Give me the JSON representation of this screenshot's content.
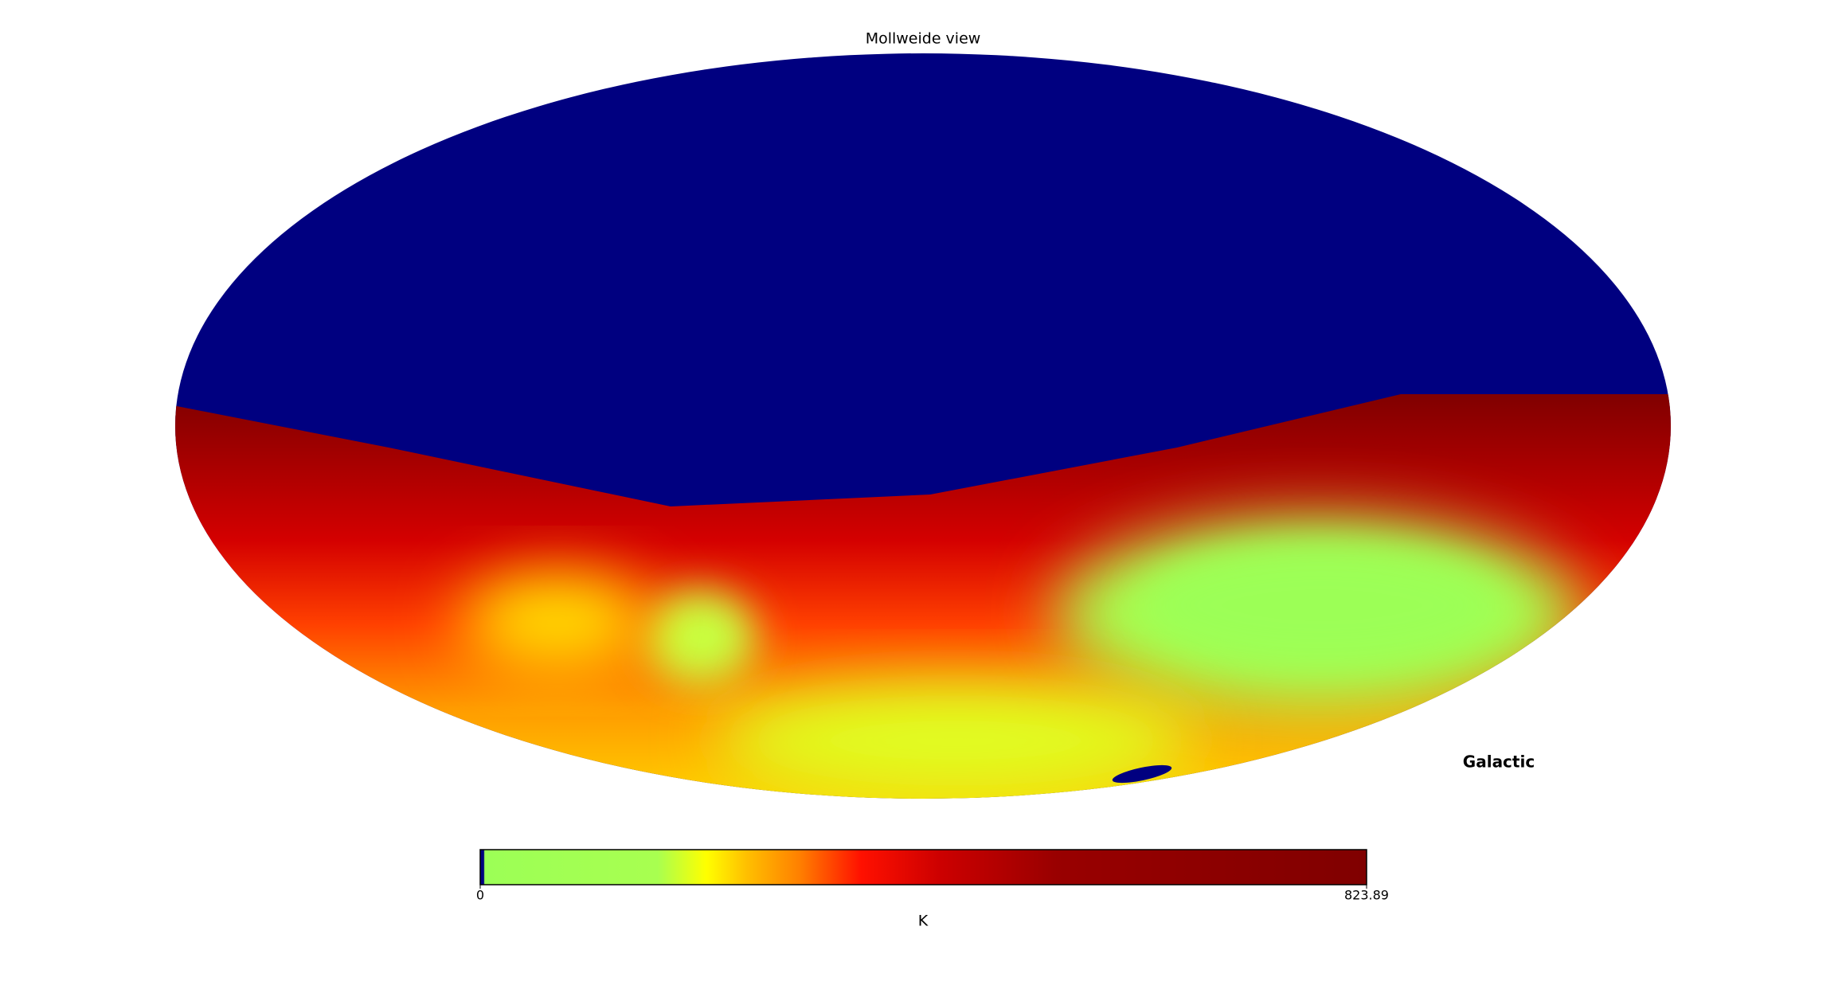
{
  "title": "Mollweide view",
  "coord": "Galactic",
  "colorbar": {
    "label": "K",
    "lim": [
      0,
      823.89
    ],
    "ticks": [
      0,
      823.89
    ],
    "colormap": [
      [
        0,
        "#000080"
      ],
      [
        0.004,
        "#000080"
      ],
      [
        0.005,
        "#9cff56"
      ],
      [
        0.2,
        "#a8ff50"
      ],
      [
        0.255,
        "#ffff00"
      ],
      [
        0.3,
        "#ffc000"
      ],
      [
        0.36,
        "#ff8000"
      ],
      [
        0.43,
        "#ff1000"
      ],
      [
        0.52,
        "#cc0000"
      ],
      [
        0.65,
        "#990000"
      ],
      [
        1,
        "#800000"
      ]
    ]
  }
}
